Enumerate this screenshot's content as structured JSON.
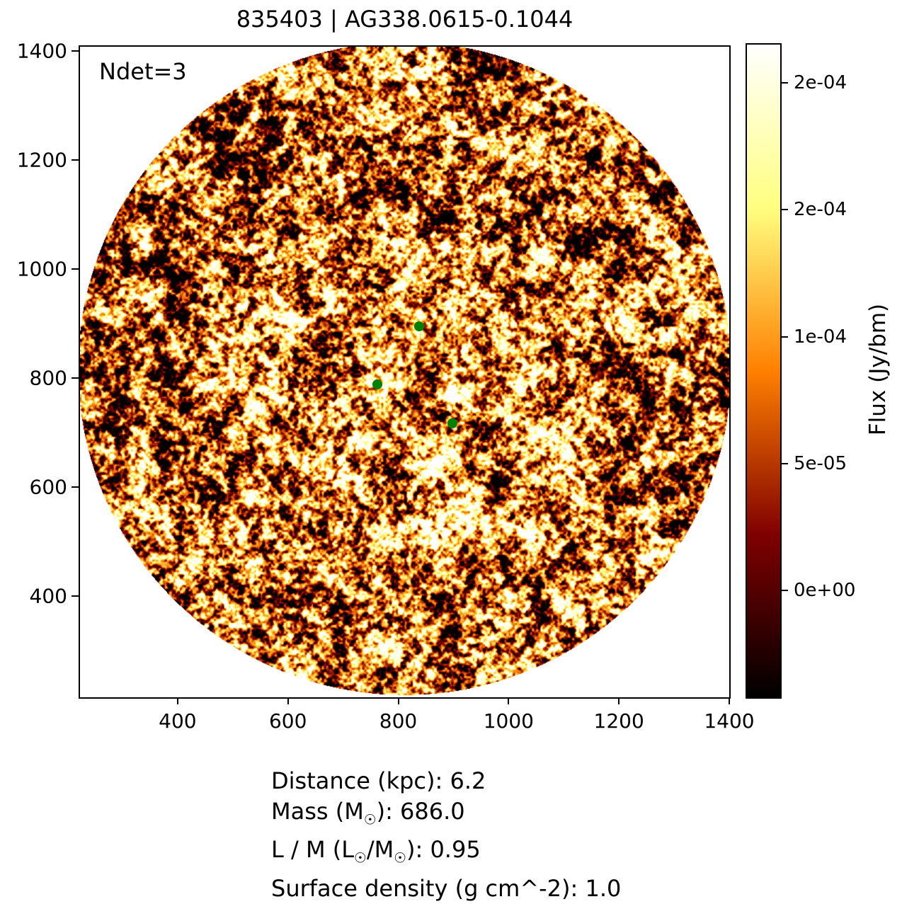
{
  "figure": {
    "title": "835403 | AG338.0615-0.1044",
    "annotation": "Ndet=3",
    "info_lines": [
      "Distance (kpc): 6.2",
      "Mass (M☉): 686.0",
      "L / M (L☉/M☉): 0.95",
      "Surface density (g cm^-2): 1.0"
    ]
  },
  "chart_data": {
    "type": "heatmap",
    "title": "835403 | AG338.0615-0.1044",
    "annotation": "Ndet=3",
    "x_ticks": [
      400,
      600,
      800,
      1000,
      1200,
      1400
    ],
    "y_ticks": [
      400,
      600,
      800,
      1000,
      1200,
      1400
    ],
    "xlim": [
      223,
      1400
    ],
    "ylim": [
      214,
      1408
    ],
    "grid": false,
    "colormap": "afmhot",
    "background_outside_field": "#ffffff",
    "field_circle": {
      "cx": 811,
      "cy": 818,
      "r": 592
    },
    "detections": [
      {
        "x": 838,
        "y": 895
      },
      {
        "x": 762,
        "y": 788
      },
      {
        "x": 898,
        "y": 717
      }
    ],
    "detection_color": "#008000",
    "colorbar": {
      "label": "Flux (Jy/bm)",
      "vmin": -4.2e-05,
      "vmax": 0.000215,
      "ticks": [
        {
          "value": 0.0,
          "label": "0e+00"
        },
        {
          "value": 5e-05,
          "label": "5e-05"
        },
        {
          "value": 0.0001,
          "label": "1e-04"
        },
        {
          "value": 0.00015,
          "label": "2e-04"
        },
        {
          "value": 0.0002,
          "label": "2e-04"
        }
      ]
    }
  }
}
